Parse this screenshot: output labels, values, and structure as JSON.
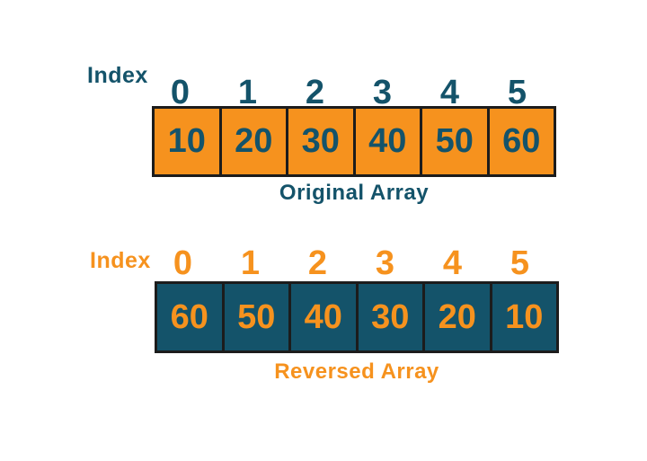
{
  "colors": {
    "orange": "#F6921E",
    "teal": "#14536A",
    "cell_border": "#1C1C1C",
    "background": "#FFFFFF"
  },
  "original": {
    "index_label": "Index",
    "indices": [
      "0",
      "1",
      "2",
      "3",
      "4",
      "5"
    ],
    "values": [
      "10",
      "20",
      "30",
      "40",
      "50",
      "60"
    ],
    "caption": "Original Array"
  },
  "reversed": {
    "index_label": "Index",
    "indices": [
      "0",
      "1",
      "2",
      "3",
      "4",
      "5"
    ],
    "values": [
      "60",
      "50",
      "40",
      "30",
      "20",
      "10"
    ],
    "caption": "Reversed Array"
  }
}
